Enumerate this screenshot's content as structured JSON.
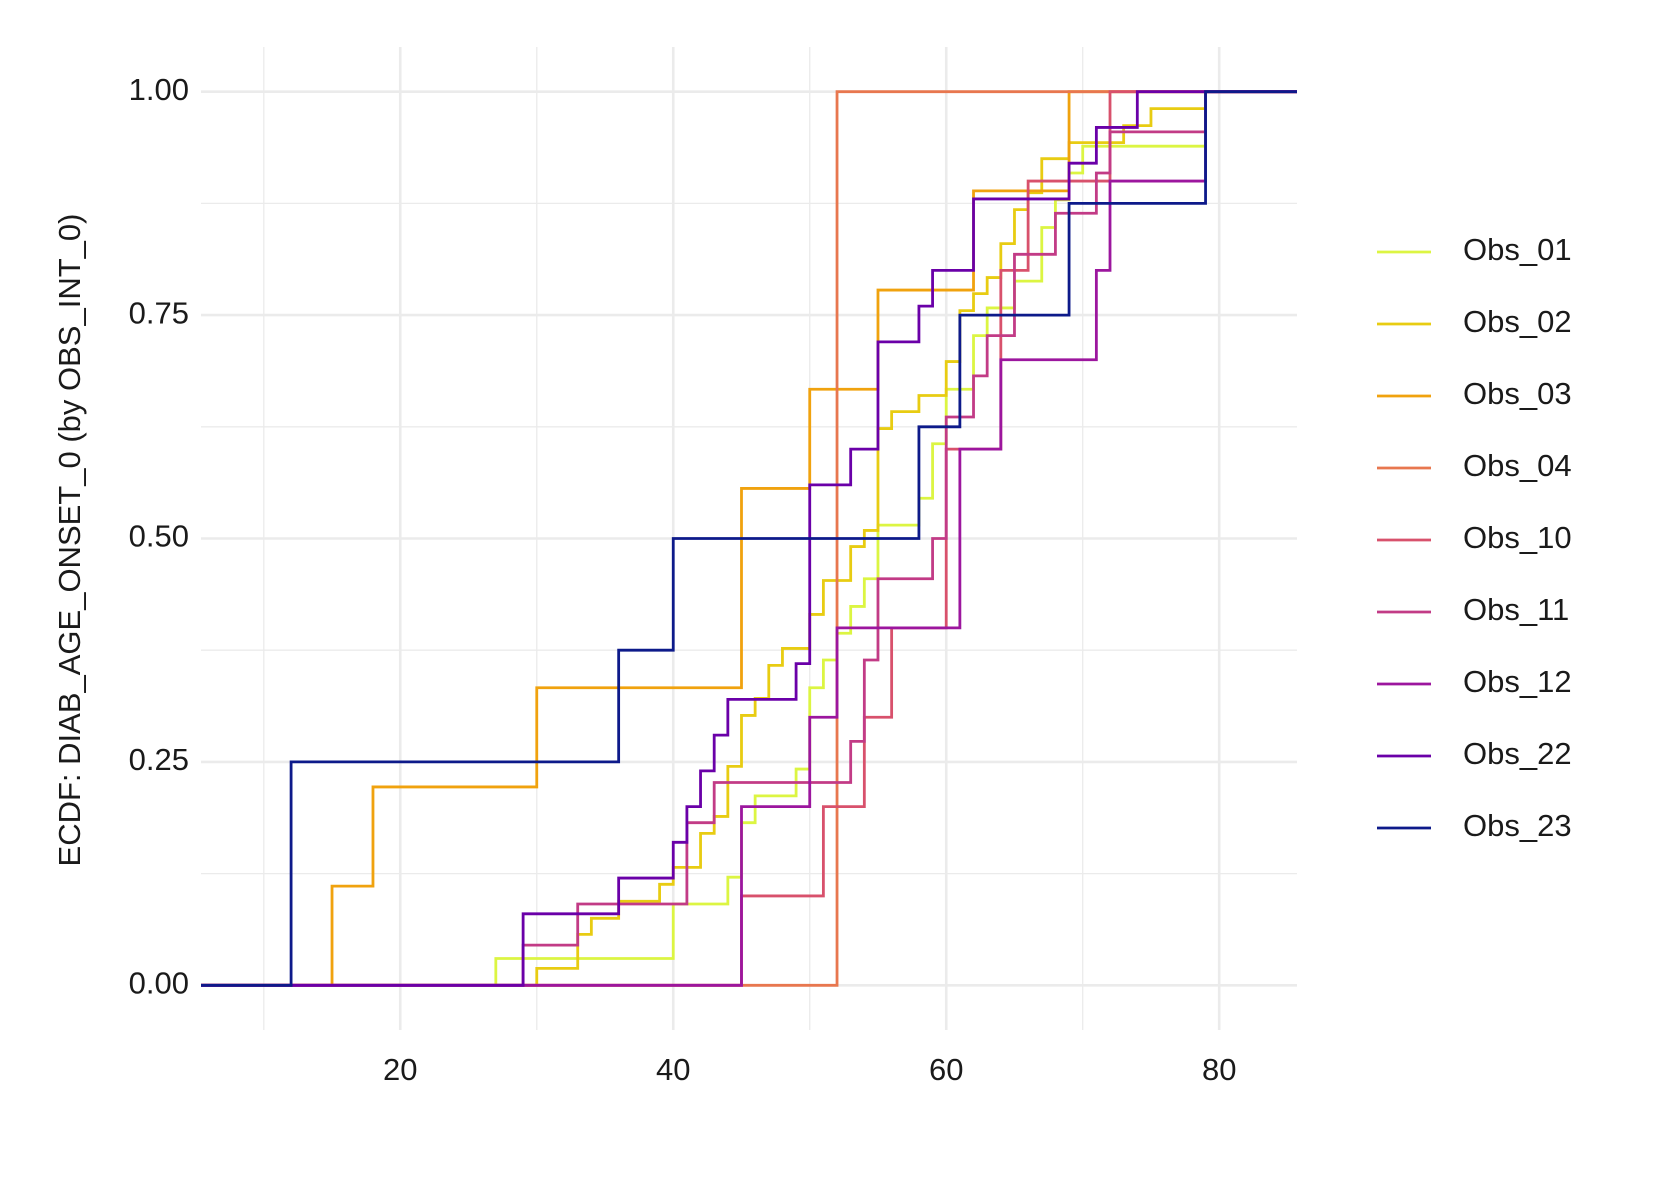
{
  "chart_data": {
    "type": "ecdf",
    "y_label": "ECDF: DIAB_AGE_ONSET_0 (by OBS_INT_0)",
    "xlim": [
      5.4,
      85.7
    ],
    "ylim": [
      -0.05,
      1.05
    ],
    "xticks": [
      20,
      40,
      60,
      80
    ],
    "xminor": [
      10,
      30,
      50,
      70
    ],
    "yticks": [
      {
        "value": 0,
        "label": "0.00"
      },
      {
        "value": 0.25,
        "label": "0.25"
      },
      {
        "value": 0.5,
        "label": "0.50"
      },
      {
        "value": 0.75,
        "label": "0.75"
      },
      {
        "value": 1,
        "label": "1.00"
      }
    ],
    "yminor": [
      0.125,
      0.375,
      0.625,
      0.875
    ],
    "grid": true,
    "legend": "right",
    "series": [
      {
        "name": "Obs_01",
        "color": "#dcf542",
        "x": [
          27,
          27,
          40,
          44,
          45,
          46,
          49,
          50,
          51,
          52,
          53,
          54,
          55,
          58,
          59,
          60,
          62,
          63,
          65,
          67,
          68,
          69,
          70,
          79
        ],
        "values": [
          0,
          0.03,
          0.091,
          0.121,
          0.182,
          0.212,
          0.242,
          0.333,
          0.364,
          0.394,
          0.424,
          0.455,
          0.515,
          0.545,
          0.606,
          0.667,
          0.727,
          0.758,
          0.788,
          0.848,
          0.879,
          0.909,
          0.939,
          1
        ]
      },
      {
        "name": "Obs_02",
        "color": "#e8cc12",
        "x": [
          30,
          30,
          33,
          34,
          36,
          39,
          40,
          42,
          43,
          44,
          45,
          46,
          47,
          48,
          50,
          51,
          53,
          54,
          55,
          56,
          58,
          60,
          61,
          62,
          63,
          64,
          65,
          66,
          67,
          69,
          73,
          75,
          79
        ],
        "values": [
          0,
          0.019,
          0.057,
          0.075,
          0.094,
          0.113,
          0.132,
          0.17,
          0.189,
          0.245,
          0.302,
          0.321,
          0.358,
          0.377,
          0.415,
          0.453,
          0.491,
          0.509,
          0.623,
          0.642,
          0.66,
          0.698,
          0.755,
          0.774,
          0.792,
          0.83,
          0.868,
          0.887,
          0.925,
          0.943,
          0.962,
          0.981,
          1
        ]
      },
      {
        "name": "Obs_03",
        "color": "#f0a20e",
        "x": [
          15,
          15,
          18,
          30,
          45,
          50,
          55,
          62,
          69
        ],
        "values": [
          0,
          0.111,
          0.222,
          0.333,
          0.556,
          0.667,
          0.778,
          0.889,
          1
        ]
      },
      {
        "name": "Obs_04",
        "color": "#e8774f",
        "x": [
          52,
          52
        ],
        "values": [
          0,
          1
        ]
      },
      {
        "name": "Obs_10",
        "color": "#d8516c",
        "x": [
          45,
          45,
          51,
          54,
          56,
          60,
          64,
          66,
          72
        ],
        "values": [
          0,
          0.1,
          0.2,
          0.3,
          0.4,
          0.6,
          0.8,
          0.9,
          1
        ]
      },
      {
        "name": "Obs_11",
        "color": "#c23b86",
        "x": [
          29,
          29,
          33,
          41,
          43,
          53,
          54,
          55,
          59,
          60,
          62,
          63,
          65,
          68,
          71,
          72,
          79
        ],
        "values": [
          0,
          0.045,
          0.091,
          0.182,
          0.227,
          0.273,
          0.364,
          0.455,
          0.5,
          0.636,
          0.682,
          0.727,
          0.818,
          0.864,
          0.909,
          0.955,
          1
        ]
      },
      {
        "name": "Obs_12",
        "color": "#9c169e",
        "x": [
          45,
          45,
          50,
          52,
          61,
          64,
          71,
          72,
          79
        ],
        "values": [
          0,
          0.2,
          0.3,
          0.4,
          0.6,
          0.7,
          0.8,
          0.9,
          1
        ]
      },
      {
        "name": "Obs_22",
        "color": "#6a00a8",
        "x": [
          29,
          29,
          36,
          40,
          41,
          42,
          43,
          44,
          49,
          50,
          53,
          55,
          58,
          59,
          62,
          69,
          71,
          74
        ],
        "values": [
          0,
          0.08,
          0.12,
          0.16,
          0.2,
          0.24,
          0.28,
          0.32,
          0.36,
          0.56,
          0.6,
          0.72,
          0.76,
          0.8,
          0.88,
          0.92,
          0.96,
          1
        ]
      },
      {
        "name": "Obs_23",
        "color": "#0d1a8a",
        "x": [
          12,
          12,
          36,
          40,
          58,
          61,
          69,
          79
        ],
        "values": [
          0,
          0.25,
          0.375,
          0.5,
          0.625,
          0.75,
          0.875,
          1
        ]
      }
    ]
  }
}
